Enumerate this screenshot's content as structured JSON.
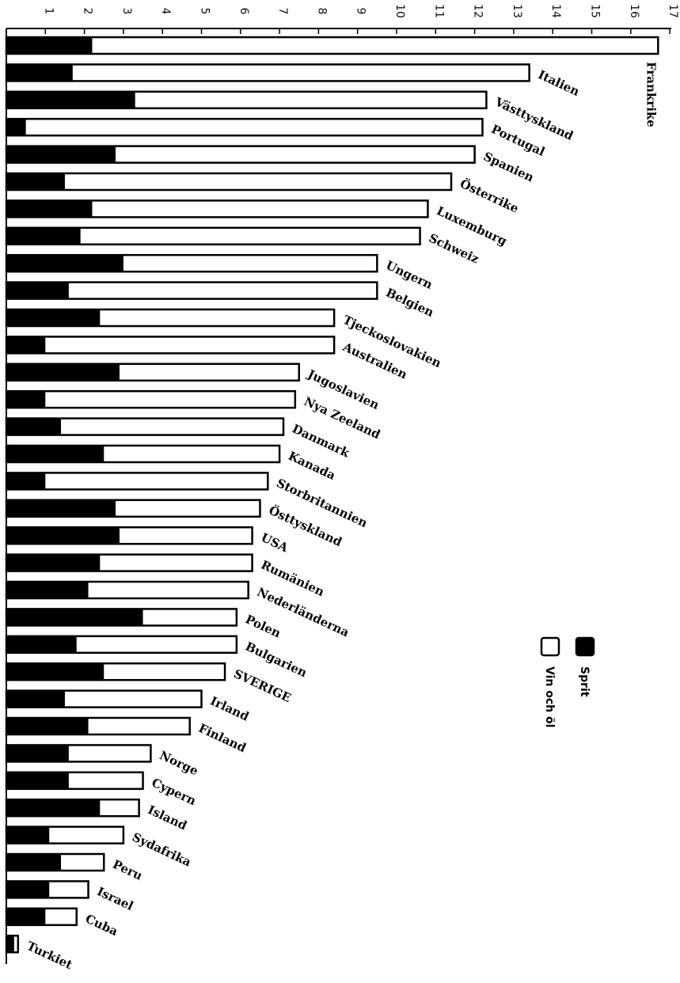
{
  "chart_data": {
    "type": "bar",
    "orientation": "horizontal-stacked",
    "xlim": [
      0,
      17
    ],
    "ticks": [
      "1",
      "2",
      "3",
      "4",
      "5",
      "6",
      "7",
      "8",
      "9",
      "10",
      "11",
      "12",
      "13",
      "14",
      "15",
      "16",
      "17"
    ],
    "series": [
      {
        "name": "Sprit",
        "color": "#000000"
      },
      {
        "name": "Vin och öl",
        "color": "#ffffff"
      }
    ],
    "legend_placement": "right",
    "categories": [
      "Frankrike",
      "Italien",
      "Västtyskland",
      "Portugal",
      "Spanien",
      "Österrike",
      "Luxemburg",
      "Schweiz",
      "Ungern",
      "Belgien",
      "Tjeckoslovakien",
      "Australien",
      "Jugoslavien",
      "Nya Zeeland",
      "Danmark",
      "Kanada",
      "Storbritannien",
      "Östtyskland",
      "USA",
      "Rumänien",
      "Nederländerna",
      "Polen",
      "Bulgarien",
      "SVERIGE",
      "Irland",
      "Finland",
      "Norge",
      "Cypern",
      "Island",
      "Sydafrika",
      "Peru",
      "Israel",
      "Cuba",
      "Turkiet"
    ],
    "sprit": [
      2.2,
      1.7,
      3.3,
      0.5,
      2.8,
      1.5,
      2.2,
      1.9,
      3.0,
      1.6,
      2.4,
      1.0,
      2.9,
      1.0,
      1.4,
      2.5,
      1.0,
      2.8,
      2.9,
      2.4,
      2.1,
      3.5,
      1.8,
      2.5,
      1.5,
      2.1,
      1.6,
      1.6,
      2.4,
      1.1,
      1.4,
      1.1,
      1.0,
      0.2
    ],
    "total": [
      16.7,
      13.4,
      12.3,
      12.2,
      12.0,
      11.4,
      10.8,
      10.6,
      9.5,
      9.5,
      8.4,
      8.4,
      7.5,
      7.4,
      7.1,
      7.0,
      6.7,
      6.5,
      6.3,
      6.3,
      6.2,
      5.9,
      5.9,
      5.6,
      5.0,
      4.7,
      3.7,
      3.5,
      3.4,
      3.0,
      2.5,
      2.1,
      1.8,
      0.3
    ]
  }
}
